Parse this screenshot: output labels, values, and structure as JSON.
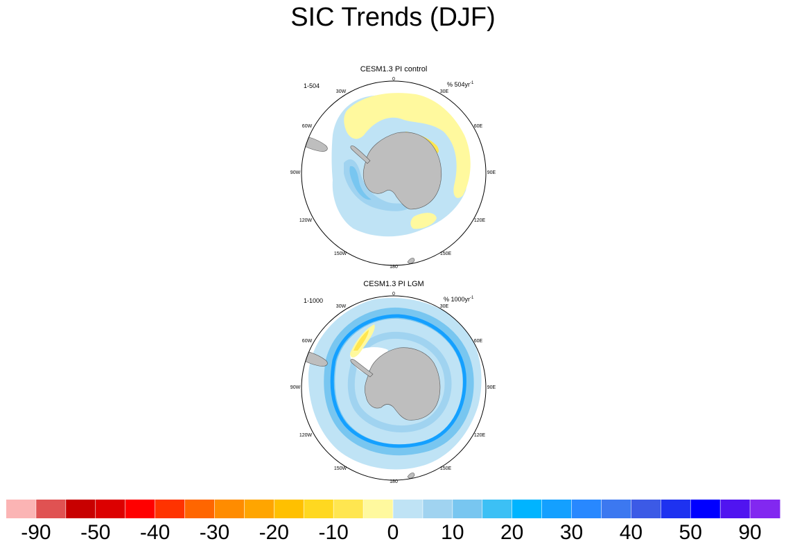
{
  "title": "SIC Trends (DJF)",
  "panels": [
    {
      "title": "CESM1.3 PI control",
      "years_label": "1-504",
      "units_label": "% 504yr",
      "units_exponent": "-1",
      "longitude_labels": {
        "lon_0": "0",
        "lon_30e": "30E",
        "lon_60e": "60E",
        "lon_90e": "90E",
        "lon_120e": "120E",
        "lon_150e": "150E",
        "lon_180": "180",
        "lon_150w": "150W",
        "lon_120w": "120W",
        "lon_90w": "90W",
        "lon_60w": "60W",
        "lon_30w": "30W"
      }
    },
    {
      "title": "CESM1.3 PI LGM",
      "years_label": "1-1000",
      "units_label": "% 1000yr",
      "units_exponent": "-1",
      "longitude_labels": {
        "lon_0": "0",
        "lon_30e": "30E",
        "lon_60e": "60E",
        "lon_90e": "90E",
        "lon_120e": "120E",
        "lon_150e": "150E",
        "lon_180": "180",
        "lon_150w": "150W",
        "lon_120w": "120W",
        "lon_90w": "90W",
        "lon_60w": "60W",
        "lon_30w": "30W"
      }
    }
  ],
  "colorbar": {
    "colors": [
      "#fbb4b4",
      "#e05252",
      "#c80000",
      "#dc0000",
      "#ff0000",
      "#ff3300",
      "#ff6600",
      "#ff8c00",
      "#ffa500",
      "#ffc000",
      "#ffd820",
      "#ffe650",
      "#fff99e",
      "#bfe3f5",
      "#a0d3f0",
      "#78c6f0",
      "#3cc0f5",
      "#00b4ff",
      "#14a0ff",
      "#2888ff",
      "#3c78f0",
      "#3c5ae6",
      "#1e32f0",
      "#0000ff",
      "#5014f0",
      "#8228f0"
    ],
    "labels": [
      "-90",
      "-50",
      "-40",
      "-30",
      "-20",
      "-10",
      "0",
      "10",
      "20",
      "30",
      "40",
      "50",
      "90"
    ]
  },
  "colors": {
    "land": "#bebebe",
    "ice_trend_positive_small": "#fff99e",
    "ice_trend_positive_mid": "#ffe650",
    "ice_trend_negative_small": "#bfe3f5",
    "ice_trend_negative_mid": "#a0d3f0",
    "ice_trend_negative_large": "#3cc0f5",
    "ice_trend_negative_strong": "#14a0ff"
  }
}
